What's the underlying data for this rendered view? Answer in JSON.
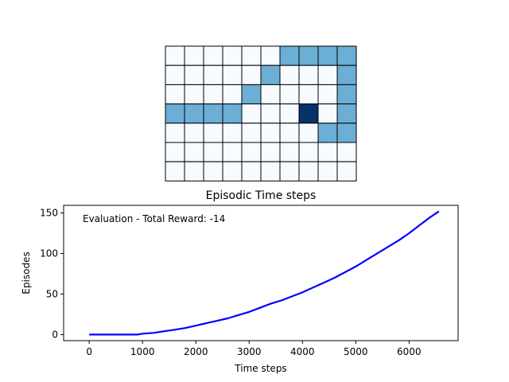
{
  "colors": {
    "empty": "#f7fbff",
    "path": "#6baed6",
    "agent": "#08306b",
    "grid_line": "#000000",
    "series_line": "#0000ff"
  },
  "chart_data": [
    {
      "type": "heatmap",
      "rows": 7,
      "cols": 10,
      "legend": "none",
      "values": [
        [
          0,
          0,
          0,
          0,
          0,
          0,
          1,
          1,
          1,
          1
        ],
        [
          0,
          0,
          0,
          0,
          0,
          1,
          0,
          0,
          0,
          1
        ],
        [
          0,
          0,
          0,
          0,
          1,
          0,
          0,
          0,
          0,
          1
        ],
        [
          1,
          1,
          1,
          1,
          0,
          0,
          0,
          2,
          0,
          1
        ],
        [
          0,
          0,
          0,
          0,
          0,
          0,
          0,
          0,
          1,
          1
        ],
        [
          0,
          0,
          0,
          0,
          0,
          0,
          0,
          0,
          0,
          0
        ],
        [
          0,
          0,
          0,
          0,
          0,
          0,
          0,
          0,
          0,
          0
        ]
      ]
    },
    {
      "type": "line",
      "title": "Episodic Time steps",
      "xlabel": "Time steps",
      "ylabel": "Episodes",
      "annotation": "Evaluation - Total Reward: -14",
      "xlim": [
        -480,
        6920
      ],
      "ylim": [
        -7.5,
        159.5
      ],
      "xticks": [
        0,
        1000,
        2000,
        3000,
        4000,
        5000,
        6000
      ],
      "yticks": [
        0,
        50,
        100,
        150
      ],
      "grid": false,
      "legend": "none",
      "series": [
        {
          "points": [
            [
              0,
              0
            ],
            [
              500,
              0
            ],
            [
              900,
              0
            ],
            [
              1000,
              1
            ],
            [
              1200,
              2
            ],
            [
              1400,
              4
            ],
            [
              1600,
              6
            ],
            [
              1800,
              8
            ],
            [
              2000,
              11
            ],
            [
              2200,
              14
            ],
            [
              2400,
              17
            ],
            [
              2600,
              20
            ],
            [
              2800,
              24
            ],
            [
              3000,
              28
            ],
            [
              3200,
              33
            ],
            [
              3400,
              38
            ],
            [
              3600,
              42
            ],
            [
              3800,
              47
            ],
            [
              4000,
              52
            ],
            [
              4200,
              58
            ],
            [
              4400,
              64
            ],
            [
              4600,
              70
            ],
            [
              4800,
              77
            ],
            [
              5000,
              84
            ],
            [
              5200,
              92
            ],
            [
              5400,
              100
            ],
            [
              5600,
              108
            ],
            [
              5800,
              116
            ],
            [
              6000,
              125
            ],
            [
              6200,
              135
            ],
            [
              6400,
              145
            ],
            [
              6560,
              152
            ]
          ]
        }
      ]
    }
  ]
}
